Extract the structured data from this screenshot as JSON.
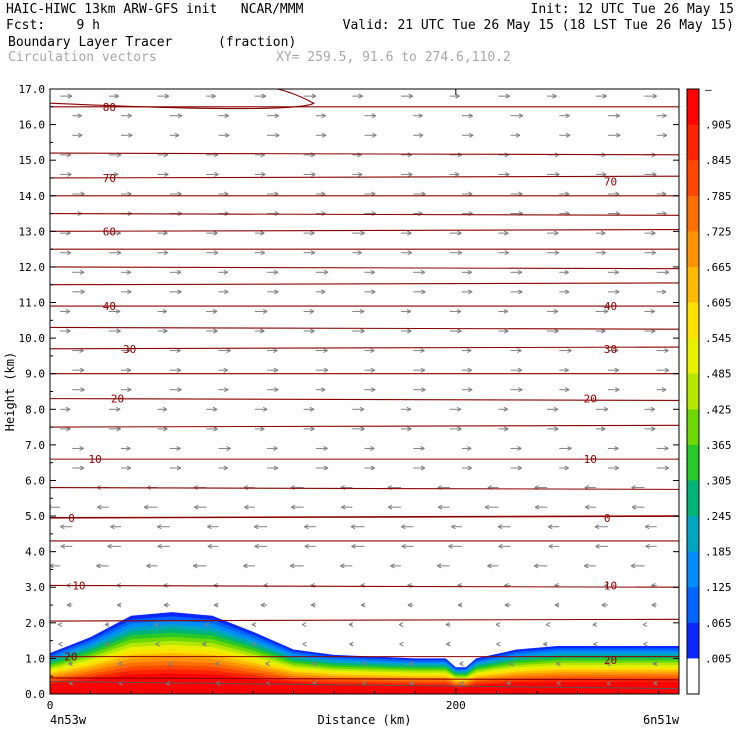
{
  "header": {
    "line1_left": "HAIC-HIWC 13km ARW-GFS init   NCAR/MMM",
    "line1_right": "Init: 12 UTC Tue 26 May 15",
    "line2_left": "Fcst:    9 h",
    "line2_right": "Valid: 21 UTC Tue 26 May 15 (18 LST Tue 26 May 15)",
    "field1_name": "Boundary Layer Tracer",
    "field1_units": "(fraction)",
    "field2_name": "Circulation vectors",
    "xy_text": "XY= 259.5, 91.6 to 274.6,110.2"
  },
  "chart_data": {
    "type": "heatmap",
    "xlabel": "Distance (km)",
    "ylabel": "Height (km)",
    "xlim": [
      0,
      310
    ],
    "ylim": [
      0.0,
      17.0
    ],
    "x_ticks": [
      {
        "value": 0,
        "label": "0"
      },
      {
        "value": 200,
        "label": "200"
      }
    ],
    "x_end_labels": {
      "left": "4n53w",
      "right": "6n51w"
    },
    "y_ticks": [
      "0.0",
      "1.0",
      "2.0",
      "3.0",
      "4.0",
      "5.0",
      "6.0",
      "7.0",
      "8.0",
      "9.0",
      "10.0",
      "11.0",
      "12.0",
      "13.0",
      "14.0",
      "15.0",
      "16.0",
      "17.0"
    ],
    "colorbar": {
      "labels": [
        "–",
        ".905",
        ".845",
        ".785",
        ".725",
        ".665",
        ".605",
        ".545",
        ".485",
        ".425",
        ".365",
        ".305",
        ".245",
        ".185",
        ".125",
        ".065",
        ".005"
      ],
      "colors": [
        "#ff0000",
        "#ff2400",
        "#ff4800",
        "#ff6e00",
        "#ff9400",
        "#ffba00",
        "#ffe000",
        "#e8f000",
        "#b4e800",
        "#6ed800",
        "#28c828",
        "#00b478",
        "#00a6c0",
        "#008cff",
        "#0064ff",
        "#0a28ff",
        "#ffffff"
      ]
    },
    "contour_labels": [
      {
        "text": "80",
        "x": 26,
        "y": 16.5
      },
      {
        "text": "70",
        "x": 26,
        "y": 14.5
      },
      {
        "text": "70",
        "x": 273,
        "y": 14.4
      },
      {
        "text": "60",
        "x": 26,
        "y": 13.0
      },
      {
        "text": "40",
        "x": 26,
        "y": 10.9
      },
      {
        "text": "40",
        "x": 273,
        "y": 10.9
      },
      {
        "text": "30",
        "x": 36,
        "y": 9.7
      },
      {
        "text": "30",
        "x": 273,
        "y": 9.7
      },
      {
        "text": "20",
        "x": 30,
        "y": 8.3
      },
      {
        "text": "20",
        "x": 263,
        "y": 8.3
      },
      {
        "text": "10",
        "x": 19,
        "y": 6.6
      },
      {
        "text": "10",
        "x": 263,
        "y": 6.6
      },
      {
        "text": "0",
        "x": 9,
        "y": 4.95
      },
      {
        "text": "0",
        "x": 273,
        "y": 4.95
      },
      {
        "text": "10",
        "x": 11,
        "y": 3.05
      },
      {
        "text": "10",
        "x": 273,
        "y": 3.05
      },
      {
        "text": "20",
        "x": 7,
        "y": 1.05
      },
      {
        "text": "20",
        "x": 273,
        "y": 0.95
      }
    ],
    "boundary_layer_top_km": [
      {
        "x": 0,
        "y": 1.15
      },
      {
        "x": 20,
        "y": 1.6
      },
      {
        "x": 40,
        "y": 2.2
      },
      {
        "x": 60,
        "y": 2.3
      },
      {
        "x": 80,
        "y": 2.2
      },
      {
        "x": 100,
        "y": 1.75
      },
      {
        "x": 120,
        "y": 1.25
      },
      {
        "x": 140,
        "y": 1.1
      },
      {
        "x": 160,
        "y": 1.05
      },
      {
        "x": 180,
        "y": 1.0
      },
      {
        "x": 195,
        "y": 1.0
      },
      {
        "x": 200,
        "y": 0.75
      },
      {
        "x": 205,
        "y": 0.75
      },
      {
        "x": 210,
        "y": 1.0
      },
      {
        "x": 230,
        "y": 1.25
      },
      {
        "x": 250,
        "y": 1.35
      },
      {
        "x": 270,
        "y": 1.35
      },
      {
        "x": 290,
        "y": 1.35
      },
      {
        "x": 310,
        "y": 1.35
      }
    ],
    "grid": false
  }
}
